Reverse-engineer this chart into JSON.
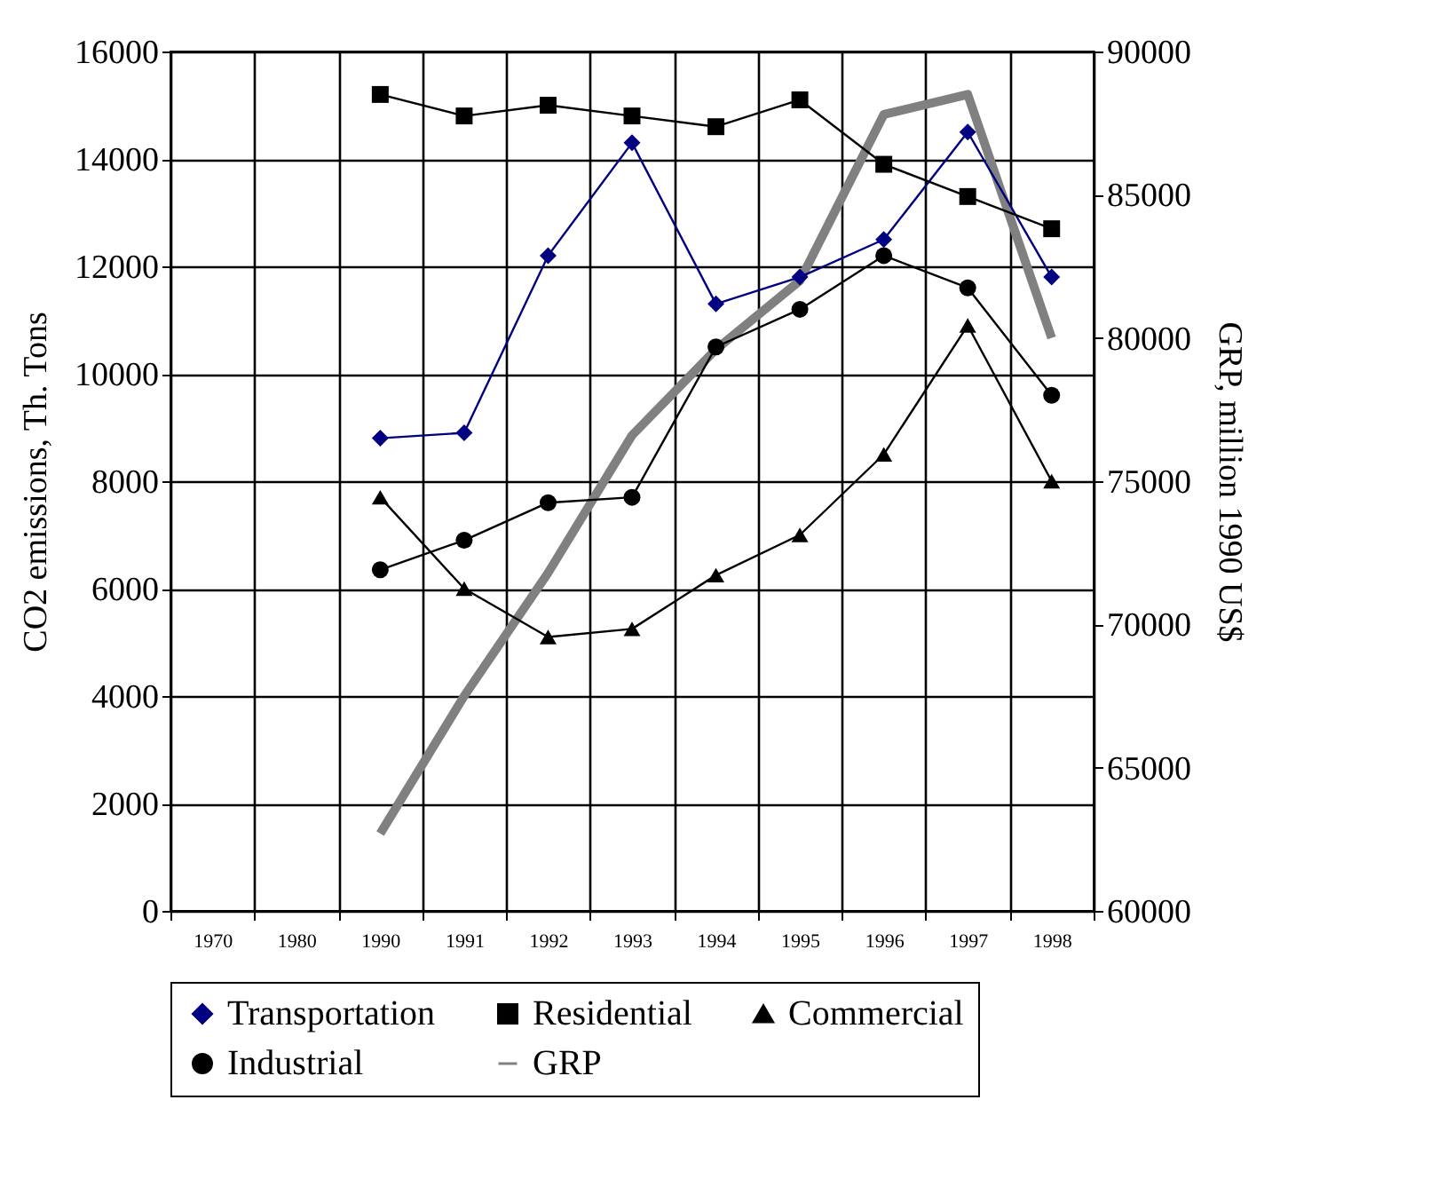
{
  "chart_data": {
    "type": "line",
    "categories": [
      "1970",
      "1980",
      "1990",
      "1991",
      "1992",
      "1993",
      "1994",
      "1995",
      "1996",
      "1997",
      "1998"
    ],
    "ylabel": "CO2 emissions, Th. Tons",
    "y2label": "GRP, million 1990 US$",
    "ylim": [
      0,
      16000
    ],
    "yticks": [
      0,
      2000,
      4000,
      6000,
      8000,
      10000,
      12000,
      14000,
      16000
    ],
    "y2lim": [
      60000,
      90000
    ],
    "y2ticks": [
      60000,
      65000,
      70000,
      75000,
      80000,
      85000,
      90000
    ],
    "grid": true,
    "legend": "bottom",
    "line_style": "solid",
    "series": [
      {
        "name": "Transportation",
        "color": "#000080",
        "marker": "diamond",
        "values": [
          null,
          null,
          8800,
          8900,
          12200,
          14300,
          11300,
          11800,
          12500,
          14500,
          11800
        ]
      },
      {
        "name": "Residential",
        "color": "#000000",
        "marker": "square",
        "values": [
          null,
          null,
          15200,
          14800,
          15000,
          14800,
          14600,
          15100,
          13900,
          13300,
          12700
        ]
      },
      {
        "name": "Commercial",
        "color": "#000000",
        "marker": "triangle",
        "values": [
          null,
          null,
          7700,
          6000,
          5100,
          5250,
          6250,
          7000,
          8500,
          10900,
          8000
        ]
      },
      {
        "name": "Industrial",
        "color": "#000000",
        "marker": "circle",
        "values": [
          null,
          null,
          6350,
          6900,
          7600,
          7700,
          10500,
          11200,
          12200,
          11600,
          9600
        ]
      },
      {
        "name": "GRP",
        "color": "#808080",
        "marker": "none",
        "axis": "y2",
        "values": [
          null,
          null,
          62700,
          67500,
          71800,
          76600,
          79600,
          82000,
          87800,
          88500,
          80000
        ]
      }
    ]
  }
}
